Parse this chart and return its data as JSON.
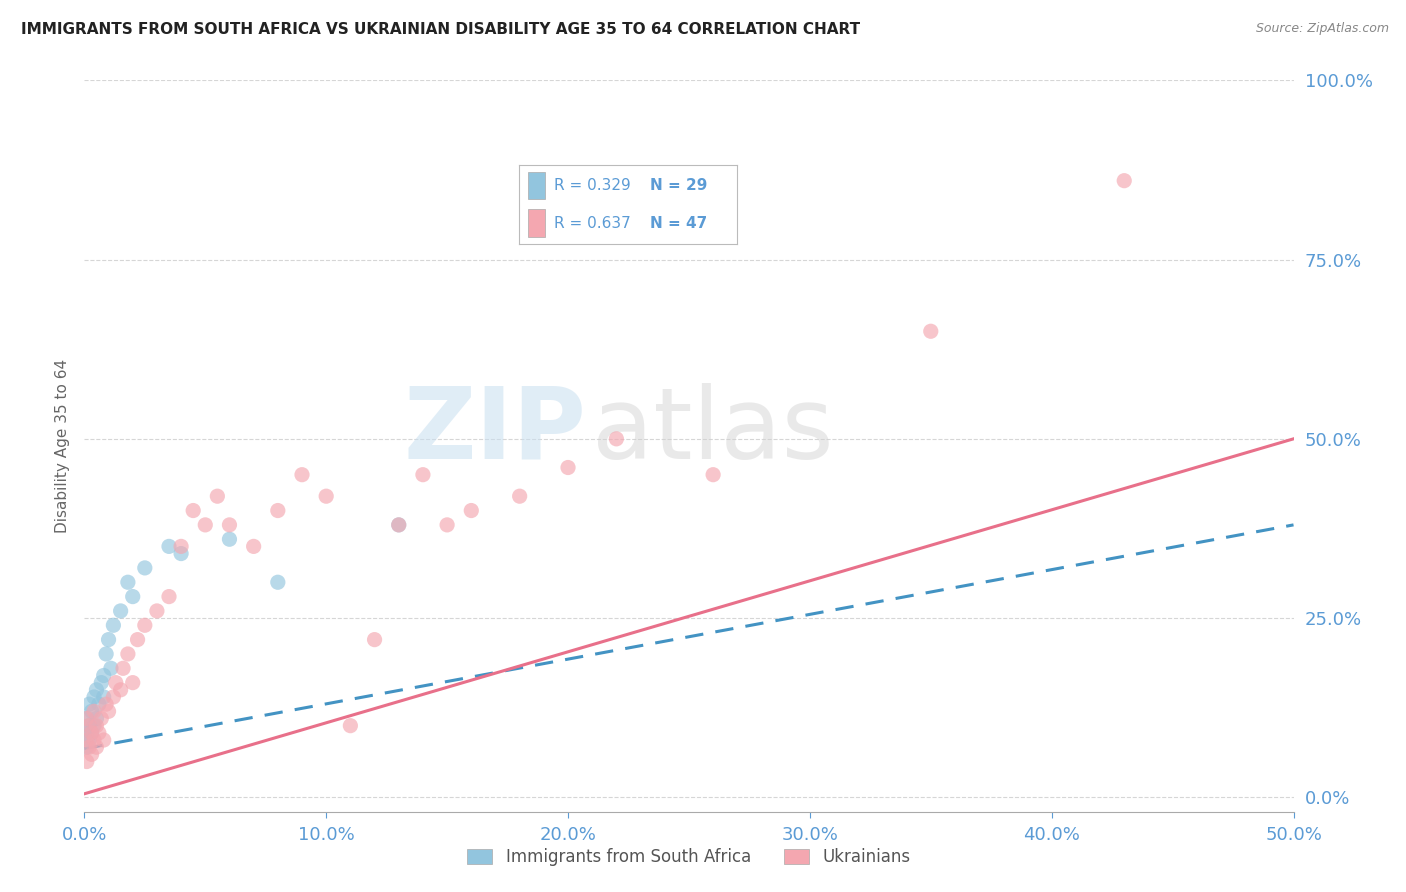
{
  "title": "IMMIGRANTS FROM SOUTH AFRICA VS UKRAINIAN DISABILITY AGE 35 TO 64 CORRELATION CHART",
  "source": "Source: ZipAtlas.com",
  "ylabel": "Disability Age 35 to 64",
  "xmin": 0.0,
  "xmax": 0.5,
  "ymin": -0.02,
  "ymax": 1.0,
  "color_blue": "#92c5de",
  "color_pink": "#f4a7b0",
  "color_blue_line": "#4393c3",
  "color_pink_line": "#e8708a",
  "color_axis": "#5b9bd5",
  "watermark_zip": "ZIP",
  "watermark_atlas": "atlas",
  "sa_points_x": [
    0.001,
    0.001,
    0.001,
    0.002,
    0.002,
    0.002,
    0.003,
    0.003,
    0.004,
    0.004,
    0.005,
    0.005,
    0.006,
    0.007,
    0.008,
    0.008,
    0.009,
    0.01,
    0.011,
    0.012,
    0.015,
    0.018,
    0.02,
    0.025,
    0.035,
    0.04,
    0.06,
    0.08,
    0.13
  ],
  "sa_points_y": [
    0.07,
    0.09,
    0.11,
    0.08,
    0.1,
    0.13,
    0.09,
    0.12,
    0.1,
    0.14,
    0.11,
    0.15,
    0.13,
    0.16,
    0.14,
    0.17,
    0.2,
    0.22,
    0.18,
    0.24,
    0.26,
    0.3,
    0.28,
    0.32,
    0.35,
    0.34,
    0.36,
    0.3,
    0.38
  ],
  "uk_points_x": [
    0.001,
    0.001,
    0.001,
    0.002,
    0.002,
    0.003,
    0.003,
    0.004,
    0.004,
    0.005,
    0.005,
    0.006,
    0.007,
    0.008,
    0.009,
    0.01,
    0.012,
    0.013,
    0.015,
    0.016,
    0.018,
    0.02,
    0.022,
    0.025,
    0.03,
    0.035,
    0.04,
    0.045,
    0.05,
    0.055,
    0.06,
    0.07,
    0.08,
    0.09,
    0.1,
    0.11,
    0.12,
    0.13,
    0.14,
    0.15,
    0.16,
    0.18,
    0.2,
    0.22,
    0.26,
    0.35,
    0.43
  ],
  "uk_points_y": [
    0.05,
    0.08,
    0.11,
    0.07,
    0.1,
    0.06,
    0.09,
    0.08,
    0.12,
    0.07,
    0.1,
    0.09,
    0.11,
    0.08,
    0.13,
    0.12,
    0.14,
    0.16,
    0.15,
    0.18,
    0.2,
    0.16,
    0.22,
    0.24,
    0.26,
    0.28,
    0.35,
    0.4,
    0.38,
    0.42,
    0.38,
    0.35,
    0.4,
    0.45,
    0.42,
    0.1,
    0.22,
    0.38,
    0.45,
    0.38,
    0.4,
    0.42,
    0.46,
    0.5,
    0.45,
    0.65,
    0.86
  ],
  "sa_trend_x": [
    0.0,
    0.5
  ],
  "sa_trend_y": [
    0.068,
    0.38
  ],
  "uk_trend_x": [
    0.0,
    0.5
  ],
  "uk_trend_y": [
    0.005,
    0.5
  ],
  "background_color": "#ffffff",
  "grid_color": "#cccccc",
  "legend_blue_text_r": "R = 0.329",
  "legend_blue_text_n": "N = 29",
  "legend_pink_text_r": "R = 0.637",
  "legend_pink_text_n": "N = 47"
}
